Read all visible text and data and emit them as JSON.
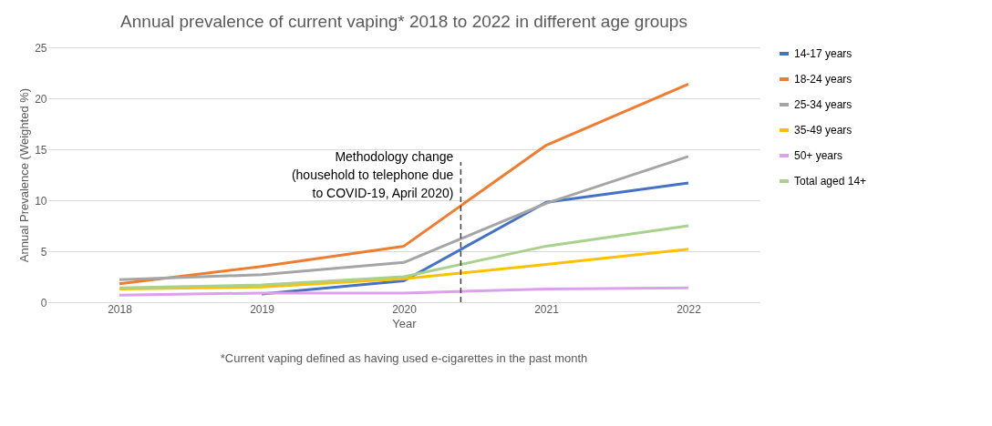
{
  "chart_data": {
    "type": "line",
    "title": "Annual prevalence of current vaping* 2018 to 2022 in different age groups",
    "xlabel": "Year",
    "ylabel": "Annual Prevalence (Weighted %)",
    "x": [
      2018,
      2019,
      2020,
      2021,
      2022
    ],
    "series": [
      {
        "name": "14-17 years",
        "color": "#4472c4",
        "values": [
          null,
          0.8,
          2.1,
          9.8,
          11.7
        ]
      },
      {
        "name": "18-24 years",
        "color": "#ed7d31",
        "values": [
          1.8,
          3.5,
          5.5,
          15.4,
          21.4
        ]
      },
      {
        "name": "25-34 years",
        "color": "#a5a5a5",
        "values": [
          2.2,
          2.7,
          3.9,
          9.7,
          14.3
        ]
      },
      {
        "name": "35-49 years",
        "color": "#ffc000",
        "values": [
          1.3,
          1.5,
          2.3,
          3.7,
          5.2
        ]
      },
      {
        "name": "50+ years",
        "color": "#dda0ec",
        "values": [
          0.7,
          0.9,
          0.9,
          1.3,
          1.4
        ]
      },
      {
        "name": "Total aged 14+",
        "color": "#a9d18e",
        "values": [
          1.4,
          1.7,
          2.5,
          5.5,
          7.5
        ]
      }
    ],
    "xlim": [
      2017.5,
      2022.5
    ],
    "xticks": [
      2018,
      2019,
      2020,
      2021,
      2022
    ],
    "ylim": [
      0,
      25
    ],
    "yticks": [
      0,
      5,
      10,
      15,
      20,
      25
    ],
    "grid": "y",
    "legend": "right",
    "marker": "none",
    "line_style": "solid",
    "ref_lines": [
      {
        "axis": "x",
        "value": 2020.4,
        "label": "Methodology change\n(household to telephone due\nto COVID-19, April 2020)",
        "color": "#404040",
        "line_style": "dashed"
      }
    ],
    "annotations": [
      "*Current vaping defined as having used e-cigarettes in the past month"
    ]
  }
}
